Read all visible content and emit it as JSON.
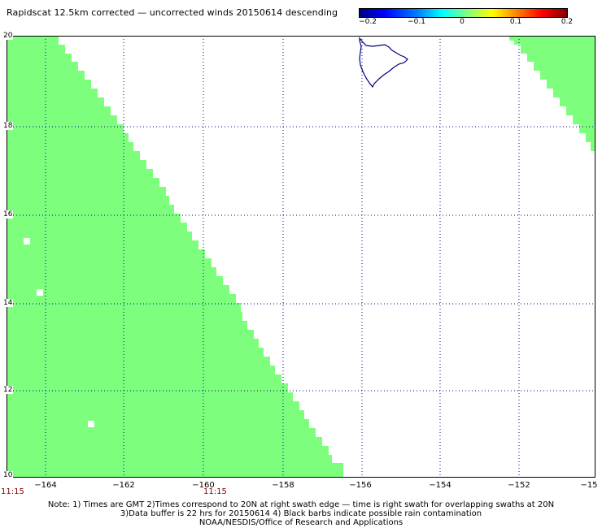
{
  "title": "Rapidscat 12.5km corrected — uncorrected winds 20150614 descending",
  "colorbar": {
    "ticks": [
      "−0.2",
      "−0.1",
      "0",
      "0.1",
      "0.2"
    ]
  },
  "map": {
    "lat_ticks": [
      "20",
      "18",
      "16",
      "14",
      "12",
      "10"
    ],
    "lon_ticks": [
      "−164",
      "−162",
      "−160",
      "−158",
      "−156",
      "−154",
      "−152",
      "−15"
    ],
    "time_labels": [
      "11:15",
      "11:15"
    ],
    "land_feature": "Big Island of Hawaii coastline",
    "colors": {
      "swath": "#7dff7d",
      "grid": "#000080",
      "coast": "#000080",
      "time_label": "#8b0000"
    }
  },
  "notes": {
    "line1": "Note: 1) Times are GMT 2)Times correspond to 20N at right swath edge — time is right swath for overlapping swaths at 20N",
    "line2": "3)Data buffer is 22 hrs for 20150614 4) Black barbs indicate possible rain contamination",
    "line3": "NOAA/NESDIS/Office of Research and Applications"
  }
}
